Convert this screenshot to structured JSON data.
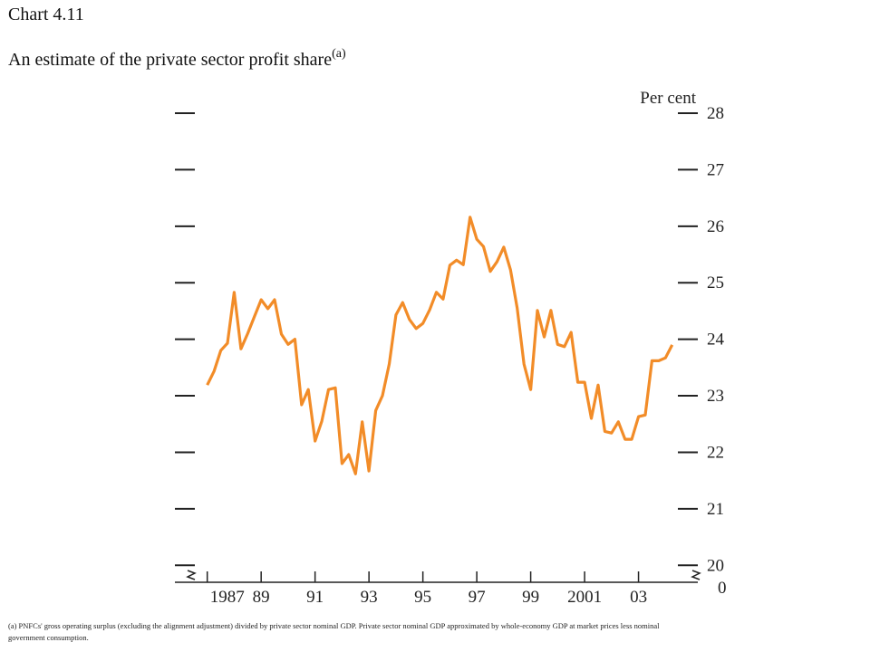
{
  "chart_data": {
    "type": "line",
    "title": "Chart 4.11",
    "subtitle": "An estimate of the private sector profit share",
    "subtitle_note": "(a)",
    "y_label": "Per cent",
    "y_origin_label": "0",
    "footnote": [
      "(a) PNFCs' gross operating surplus (excluding the alignment adjustment) divided by private sector nominal GDP. Private sector nominal GDP approximated by whole-economy GDP at market prices less nominal",
      "government consumption."
    ],
    "x": [
      1987,
      1987.25,
      1987.5,
      1987.75,
      1988,
      1988.25,
      1988.5,
      1988.75,
      1989,
      1989.25,
      1989.5,
      1989.75,
      1990,
      1990.25,
      1990.5,
      1990.75,
      1991,
      1991.25,
      1991.5,
      1991.75,
      1992,
      1992.25,
      1992.5,
      1992.75,
      1993,
      1993.25,
      1993.5,
      1993.75,
      1994,
      1994.25,
      1994.5,
      1994.75,
      1995,
      1995.25,
      1995.5,
      1995.75,
      1996,
      1996.25,
      1996.5,
      1996.75,
      1997,
      1997.25,
      1997.5,
      1997.75,
      1998,
      1998.25,
      1998.5,
      1998.75,
      1999,
      1999.25,
      1999.5,
      1999.75,
      2000,
      2000.25,
      2000.5,
      2000.75,
      2001,
      2001.25,
      2001.5,
      2001.75,
      2002,
      2002.25,
      2002.5,
      2002.75,
      2003,
      2003.25,
      2003.5,
      2003.75,
      2004,
      2004.25
    ],
    "series": [
      {
        "color": "#f28c28",
        "values": [
          23.19,
          23.43,
          23.8,
          23.93,
          24.83,
          23.83,
          24.1,
          24.4,
          24.7,
          24.54,
          24.7,
          24.09,
          23.91,
          24.0,
          22.84,
          23.11,
          22.2,
          22.55,
          23.11,
          23.14,
          21.8,
          21.96,
          21.62,
          22.54,
          21.67,
          22.74,
          23.0,
          23.56,
          24.43,
          24.65,
          24.35,
          24.19,
          24.28,
          24.52,
          24.83,
          24.71,
          25.31,
          25.4,
          25.32,
          26.16,
          25.77,
          25.64,
          25.2,
          25.37,
          25.63,
          25.23,
          24.55,
          23.56,
          23.11,
          24.51,
          24.04,
          24.51,
          23.91,
          23.87,
          24.12,
          23.24,
          23.24,
          22.6,
          23.19,
          22.37,
          22.34,
          22.54,
          22.23,
          22.23,
          22.63,
          22.66,
          23.62,
          23.62,
          23.67,
          23.9
        ]
      }
    ],
    "xlim": [
      1985.8,
      2005.2
    ],
    "xticks": [
      {
        "value": 1987,
        "label": "1987"
      },
      {
        "value": 1989,
        "label": "89"
      },
      {
        "value": 1991,
        "label": "91"
      },
      {
        "value": 1993,
        "label": "93"
      },
      {
        "value": 1995,
        "label": "95"
      },
      {
        "value": 1997,
        "label": "97"
      },
      {
        "value": 1999,
        "label": "99"
      },
      2001,
      {
        "value": 2003,
        "label": "03"
      }
    ],
    "ylim": [
      19.7,
      28
    ],
    "yticks": [
      20,
      21,
      22,
      23,
      24,
      25,
      26,
      27,
      28
    ]
  }
}
